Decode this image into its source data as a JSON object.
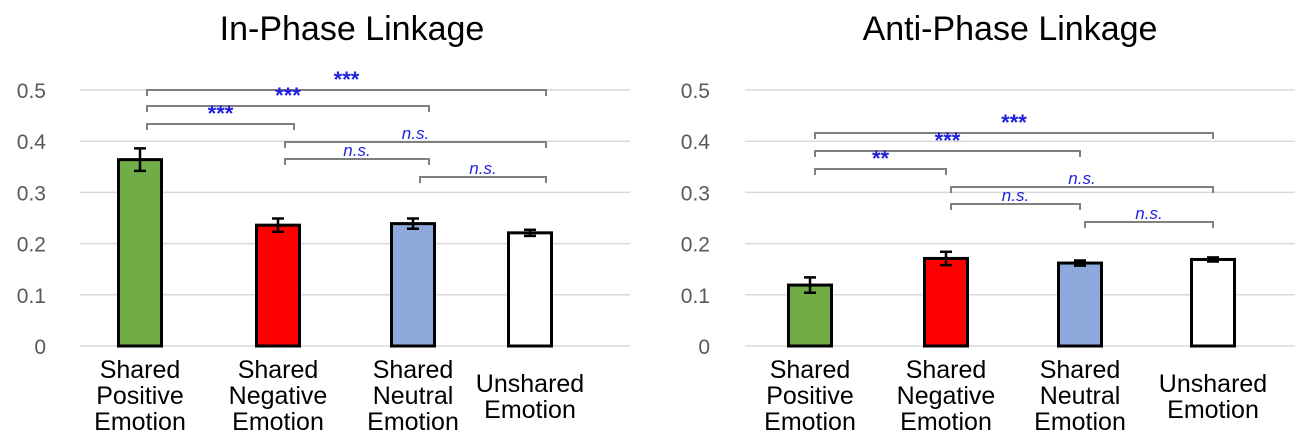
{
  "chart_data": [
    {
      "type": "bar",
      "title": "In-Phase Linkage",
      "categories": [
        [
          "Shared",
          "Positive",
          "Emotion"
        ],
        [
          "Shared",
          "Negative",
          "Emotion"
        ],
        [
          "Shared",
          "Neutral",
          "Emotion"
        ],
        [
          "Unshared",
          "Emotion"
        ]
      ],
      "values": [
        0.364,
        0.236,
        0.239,
        0.221
      ],
      "errors": [
        0.022,
        0.013,
        0.01,
        0.006
      ],
      "bar_colors": [
        "#70AD47",
        "#FF0000",
        "#8EA9DB",
        "#FFFFFF"
      ],
      "ylim": [
        0,
        0.5
      ],
      "yticks": [
        "0",
        "0.1",
        "0.2",
        "0.3",
        "0.4",
        "0.5"
      ],
      "grid": true,
      "significance": [
        {
          "from": 0,
          "to": 3,
          "label": "***"
        },
        {
          "from": 0,
          "to": 2,
          "label": "***"
        },
        {
          "from": 0,
          "to": 1,
          "label": "***"
        },
        {
          "from": 1,
          "to": 3,
          "label": "n.s."
        },
        {
          "from": 1,
          "to": 2,
          "label": "n.s."
        },
        {
          "from": 2,
          "to": 3,
          "label": "n.s."
        }
      ]
    },
    {
      "type": "bar",
      "title": "Anti-Phase Linkage",
      "categories": [
        [
          "Shared",
          "Positive",
          "Emotion"
        ],
        [
          "Shared",
          "Negative",
          "Emotion"
        ],
        [
          "Shared",
          "Neutral",
          "Emotion"
        ],
        [
          "Unshared",
          "Emotion"
        ]
      ],
      "values": [
        0.119,
        0.171,
        0.162,
        0.169
      ],
      "errors": [
        0.015,
        0.013,
        0.005,
        0.004
      ],
      "bar_colors": [
        "#70AD47",
        "#FF0000",
        "#8EA9DB",
        "#FFFFFF"
      ],
      "ylim": [
        0,
        0.5
      ],
      "yticks": [
        "0",
        "0.1",
        "0.2",
        "0.3",
        "0.4",
        "0.5"
      ],
      "grid": true,
      "significance": [
        {
          "from": 0,
          "to": 3,
          "label": "***"
        },
        {
          "from": 0,
          "to": 2,
          "label": "***"
        },
        {
          "from": 0,
          "to": 1,
          "label": "**"
        },
        {
          "from": 1,
          "to": 3,
          "label": "n.s."
        },
        {
          "from": 1,
          "to": 2,
          "label": "n.s."
        },
        {
          "from": 2,
          "to": 3,
          "label": "n.s."
        }
      ]
    }
  ],
  "colors": {
    "significance_text": "#1F1FE0",
    "bracket": "#808080",
    "gridline": "#D9D9D9",
    "axis_text": "#595959",
    "bar_outline": "#000000"
  }
}
